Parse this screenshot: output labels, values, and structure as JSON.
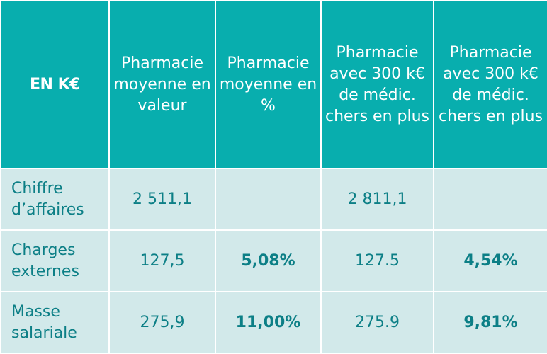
{
  "table": {
    "headers": [
      "EN K€",
      "Pharmacie moyenne en valeur",
      "Pharmacie moyenne en %",
      "Pharmacie avec 300 k€ de médic. chers en plus",
      "Pharmacie avec 300 k€ de médic. chers en plus"
    ],
    "rows": [
      {
        "label": "Chiffre d’affaires",
        "cells": [
          "2 511,1",
          "",
          "2 811,1",
          ""
        ]
      },
      {
        "label": "Charges externes",
        "cells": [
          "127,5",
          "5,08%",
          "127.5",
          "4,54%"
        ]
      },
      {
        "label": "Masse salariale",
        "cells": [
          "275,9",
          "11,00%",
          "275.9",
          "9,81%"
        ]
      }
    ]
  },
  "colors": {
    "header_bg": "#08aeae",
    "body_bg": "#d2e9ea",
    "body_text": "#0c7f86",
    "header_text": "#ffffff"
  }
}
